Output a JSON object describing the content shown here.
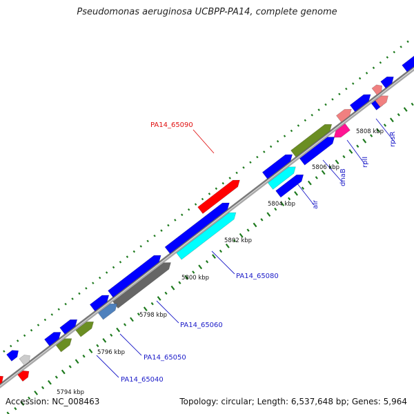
{
  "title": "Pseudomonas aeruginosa UCBPP-PA14, complete genome",
  "footer": {
    "accession": "Accession: NC_008463",
    "summary": "Topology: circular; Length: 6,537,648 bp; Genes: 5,964"
  },
  "colors": {
    "backbone": "#8c8c8c",
    "tick": "#1e7a1e",
    "gene_label": "#1a1ac8",
    "highlight_label": "#e01010"
  },
  "scale_labels": [
    "5794 kbp",
    "5796 kbp",
    "5798 kbp",
    "5800 kbp",
    "5802 kbp",
    "5804 kbp",
    "5806 kbp",
    "5808 kbp"
  ],
  "gene_labels": [
    {
      "text": "PA14_65090",
      "highlight": true
    },
    {
      "text": "alr",
      "highlight": false
    },
    {
      "text": "dnaB",
      "highlight": false
    },
    {
      "text": "rplI",
      "highlight": false
    },
    {
      "text": "rpsR",
      "highlight": false
    },
    {
      "text": "PA14_65080",
      "highlight": false
    },
    {
      "text": "PA14_65060",
      "highlight": false
    },
    {
      "text": "PA14_65050",
      "highlight": false
    },
    {
      "text": "PA14_65040",
      "highlight": false
    }
  ],
  "features": [
    {
      "color": "#ff0000"
    },
    {
      "color": "#0000ff"
    },
    {
      "color": "#00ffff"
    },
    {
      "color": "#0000ff"
    },
    {
      "color": "#666666"
    },
    {
      "color": "#0000ff"
    },
    {
      "color": "#4f81bd"
    },
    {
      "color": "#0000ff"
    },
    {
      "color": "#6b8e23"
    },
    {
      "color": "#0000ff"
    },
    {
      "color": "#6b8e23"
    },
    {
      "color": "#0000ff"
    },
    {
      "color": "#cccccc"
    },
    {
      "color": "#ff0000"
    },
    {
      "color": "#ff0000"
    },
    {
      "color": "#0000ff"
    },
    {
      "color": "#00ffff"
    },
    {
      "color": "#0000ff"
    },
    {
      "color": "#6b8e23"
    },
    {
      "color": "#0000ff"
    },
    {
      "color": "#ff1493"
    },
    {
      "color": "#f08080"
    },
    {
      "color": "#0000ff"
    },
    {
      "color": "#0000ff"
    },
    {
      "color": "#f08080"
    },
    {
      "color": "#f08080"
    },
    {
      "color": "#0000ff"
    },
    {
      "color": "#0000ff"
    },
    {
      "color": "#f08080"
    },
    {
      "color": "#ff8c00"
    }
  ]
}
